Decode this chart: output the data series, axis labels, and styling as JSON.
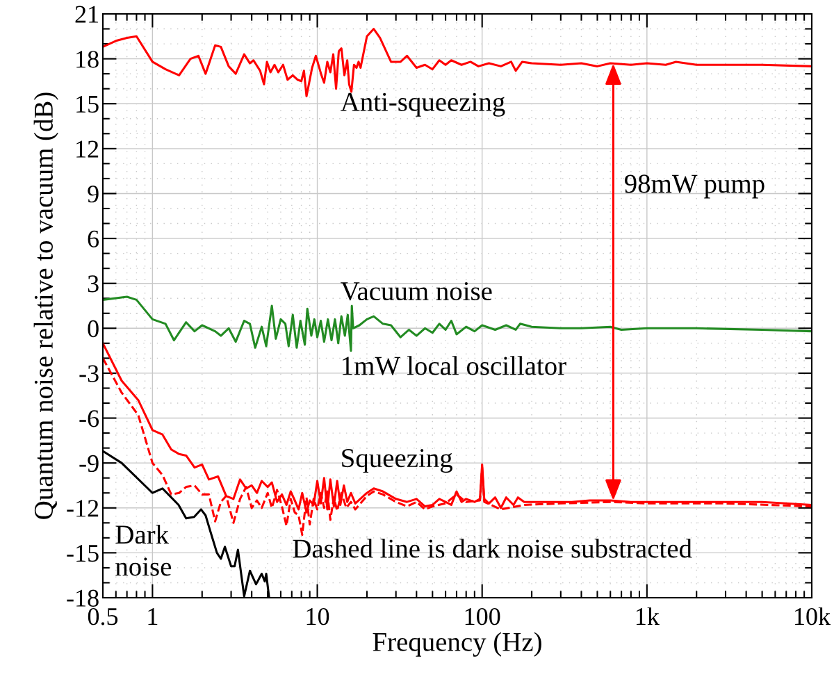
{
  "chart_data": {
    "type": "line",
    "xlabel": "Frequency (Hz)",
    "ylabel": "Quantum noise relative to vacuum (dB)",
    "log": "x",
    "grid": true,
    "legend": false,
    "xlim": [
      0.5,
      10000
    ],
    "xticks": [
      {
        "value": 0.5,
        "label": "0.5"
      },
      1,
      10,
      100,
      {
        "value": 1000,
        "label": "1k"
      },
      {
        "value": 10000,
        "label": "10k"
      }
    ],
    "ylim": [
      -18,
      21
    ],
    "yticks": [
      -18,
      -15,
      -12,
      -9,
      -6,
      -3,
      0,
      3,
      6,
      9,
      12,
      15,
      18,
      21
    ],
    "series": [
      {
        "color": "#ff0000",
        "line_style": "solid",
        "x": [
          0.5,
          0.6,
          0.7,
          0.8,
          1.0,
          1.2,
          1.45,
          1.7,
          1.9,
          2.1,
          2.4,
          2.6,
          2.9,
          3.2,
          3.6,
          3.9,
          4.1,
          4.5,
          4.75,
          4.95,
          5.2,
          5.5,
          5.8,
          6.2,
          6.6,
          7.1,
          7.6,
          8.0,
          8.3,
          8.6,
          9.3,
          9.8,
          10.6,
          11,
          11.5,
          12,
          12.5,
          13,
          13.5,
          14,
          14.6,
          15.2,
          15.6,
          16.1,
          16.7,
          17.3,
          17.8,
          18.3,
          20,
          22,
          24,
          28,
          32,
          35,
          40,
          45,
          50,
          55,
          60,
          65,
          75,
          85,
          95,
          110,
          130,
          150,
          160,
          175,
          200,
          300,
          400,
          500,
          600,
          800,
          1000,
          1300,
          1500,
          2000,
          5000,
          10000
        ],
        "values": [
          18.8,
          19.2,
          19.4,
          19.5,
          17.8,
          17.3,
          16.9,
          18.0,
          18.2,
          17.0,
          18.9,
          18.8,
          17.5,
          17.0,
          18.3,
          17.7,
          17.9,
          17.2,
          16.3,
          17.8,
          17.1,
          17.6,
          17.1,
          17.6,
          16.6,
          16.9,
          16.6,
          16.5,
          17.2,
          15.5,
          17.4,
          18.2,
          16.9,
          16.4,
          17.8,
          17.1,
          18.3,
          16.0,
          18.5,
          18.7,
          16.9,
          17.9,
          16.3,
          15.8,
          17.6,
          17.4,
          17.8,
          17.4,
          19.5,
          20.0,
          19.4,
          17.8,
          17.8,
          18.2,
          17.4,
          17.6,
          17.3,
          17.9,
          17.6,
          17.9,
          17.6,
          17.8,
          17.5,
          17.7,
          17.5,
          17.8,
          17.2,
          17.8,
          17.7,
          17.6,
          17.7,
          17.5,
          17.7,
          17.6,
          17.7,
          17.6,
          17.8,
          17.6,
          17.6,
          17.5
        ]
      },
      {
        "color": "#228b22",
        "line_style": "solid",
        "x": [
          0.5,
          0.7,
          0.8,
          1.0,
          1.2,
          1.35,
          1.6,
          1.8,
          2.0,
          2.4,
          2.6,
          2.9,
          3.2,
          3.6,
          3.9,
          4.2,
          4.6,
          4.9,
          5.3,
          5.6,
          6.0,
          6.4,
          6.7,
          7.1,
          7.5,
          7.9,
          8.4,
          8.7,
          9.2,
          9.6,
          10,
          10.5,
          11,
          11.6,
          12.2,
          12.8,
          13.4,
          14,
          14.7,
          15.3,
          16,
          16.2,
          16.5,
          18,
          20,
          22,
          25,
          28,
          32,
          36,
          40,
          45,
          50,
          55,
          60,
          65,
          70,
          80,
          90,
          100,
          120,
          140,
          160,
          170,
          200,
          300,
          400,
          600,
          700,
          1000,
          1500,
          2000,
          5000,
          10000
        ],
        "values": [
          1.9,
          2.1,
          1.9,
          0.6,
          0.3,
          -0.8,
          0.4,
          -0.2,
          0.2,
          -0.2,
          -0.5,
          0.0,
          -0.9,
          0.5,
          0.3,
          -1.3,
          0.1,
          -1.2,
          1.5,
          -0.7,
          0.6,
          0.3,
          -1.2,
          0.9,
          -1.3,
          0.5,
          -1.1,
          1.3,
          -0.5,
          0.6,
          -0.6,
          0.5,
          -0.9,
          0.6,
          -0.8,
          0.6,
          -1.0,
          0.8,
          -0.5,
          0.9,
          -1.5,
          1.5,
          0.0,
          0.2,
          0.6,
          0.8,
          0.3,
          0.2,
          -0.6,
          -0.1,
          -0.5,
          0.0,
          -0.3,
          0.3,
          -0.1,
          0.5,
          -0.4,
          0.1,
          -0.2,
          0.2,
          -0.1,
          0.2,
          -0.1,
          0.3,
          0.1,
          0.0,
          0.0,
          0.1,
          -0.1,
          0.0,
          0.0,
          0.0,
          -0.1,
          -0.2
        ]
      },
      {
        "color": "#ff0000",
        "line_style": "solid",
        "x": [
          0.5,
          0.65,
          0.82,
          1.0,
          1.15,
          1.3,
          1.45,
          1.6,
          1.8,
          2.0,
          2.2,
          2.5,
          2.8,
          3.1,
          3.4,
          3.7,
          4.0,
          4.3,
          4.6,
          5.0,
          5.3,
          5.7,
          6.1,
          6.5,
          6.9,
          7.3,
          7.7,
          8.1,
          8.6,
          9.0,
          9.5,
          10,
          10.5,
          11,
          11.5,
          12,
          12.6,
          13.2,
          13.8,
          14.5,
          15.2,
          16,
          17,
          20,
          22,
          25,
          30,
          35,
          40,
          45,
          50,
          55,
          60,
          65,
          70,
          75,
          80,
          90,
          97,
          100,
          103,
          110,
          120,
          130,
          140,
          155,
          165,
          180,
          250,
          350,
          450,
          600,
          800,
          1000,
          2000,
          5000,
          10000
        ],
        "values": [
          -1.0,
          -3.5,
          -4.8,
          -6.8,
          -7.1,
          -8.1,
          -8.4,
          -8.5,
          -9.3,
          -9.1,
          -10.1,
          -9.9,
          -11.2,
          -11.4,
          -10.1,
          -10.7,
          -10.5,
          -11.0,
          -10.2,
          -10.6,
          -10.3,
          -11.6,
          -11.1,
          -11.8,
          -10.9,
          -11.5,
          -12.1,
          -11.0,
          -12.3,
          -11.5,
          -11.8,
          -10.2,
          -11.7,
          -10.0,
          -12.1,
          -10.1,
          -11.9,
          -10.2,
          -11.8,
          -10.5,
          -11.6,
          -11.0,
          -11.7,
          -11.0,
          -10.7,
          -10.9,
          -11.4,
          -11.6,
          -11.4,
          -11.9,
          -11.8,
          -11.4,
          -11.6,
          -11.8,
          -10.9,
          -11.6,
          -11.4,
          -11.6,
          -11.4,
          -9.1,
          -11.4,
          -11.7,
          -11.3,
          -12.0,
          -11.3,
          -11.8,
          -11.3,
          -11.6,
          -11.6,
          -11.6,
          -11.5,
          -11.5,
          -11.6,
          -11.6,
          -11.6,
          -11.6,
          -11.8
        ]
      },
      {
        "color": "#ff0000",
        "line_style": "dashed",
        "x": [
          0.5,
          0.65,
          0.82,
          1.0,
          1.15,
          1.3,
          1.45,
          1.6,
          1.8,
          2.0,
          2.2,
          2.4,
          2.6,
          2.8,
          3.1,
          3.4,
          3.7,
          4.0,
          4.3,
          4.6,
          5.0,
          5.3,
          5.7,
          6.1,
          6.5,
          6.9,
          7.3,
          7.7,
          8.1,
          8.6,
          9.0,
          9.5,
          10,
          10.5,
          11,
          11.5,
          12,
          12.6,
          13.2,
          14,
          15,
          16,
          17,
          20,
          22,
          25,
          30,
          35,
          40,
          45,
          50,
          60,
          70,
          80,
          97,
          100,
          103,
          130,
          180,
          300,
          600,
          1000,
          3000,
          10000
        ],
        "values": [
          -2.0,
          -4.3,
          -5.8,
          -9.0,
          -9.8,
          -11.1,
          -11.0,
          -10.6,
          -10.5,
          -11.1,
          -11.1,
          -12.9,
          -11.6,
          -11.2,
          -13.0,
          -11.4,
          -10.6,
          -12.0,
          -11.5,
          -12.0,
          -11.0,
          -12.0,
          -10.8,
          -11.9,
          -13.2,
          -11.4,
          -12.3,
          -12.5,
          -13.8,
          -11.3,
          -13.1,
          -11.4,
          -12.1,
          -11.0,
          -12.0,
          -10.9,
          -12.8,
          -11.3,
          -12.2,
          -11.0,
          -12.0,
          -11.6,
          -12.1,
          -11.2,
          -10.9,
          -11.1,
          -11.6,
          -11.9,
          -11.6,
          -12.1,
          -11.9,
          -11.7,
          -11.1,
          -11.6,
          -11.5,
          -9.3,
          -11.6,
          -12.1,
          -11.8,
          -11.7,
          -11.6,
          -11.7,
          -11.7,
          -11.9
        ]
      },
      {
        "color": "#000000",
        "line_style": "solid",
        "x": [
          0.5,
          0.65,
          1.0,
          1.15,
          1.44,
          1.6,
          1.79,
          1.97,
          2.1,
          2.25,
          2.46,
          2.6,
          2.75,
          3.0,
          3.15,
          3.3,
          3.6,
          3.9,
          4.25,
          4.6,
          4.8,
          4.9,
          5.1
        ],
        "values": [
          -8.2,
          -9.0,
          -11.0,
          -10.7,
          -11.8,
          -12.7,
          -12.6,
          -12.1,
          -12.5,
          -13.6,
          -15.0,
          -15.4,
          -14.6,
          -15.9,
          -15.9,
          -14.8,
          -17.9,
          -16.2,
          -17.1,
          -16.4,
          -16.9,
          -16.4,
          -18.0
        ]
      }
    ],
    "annotations": [
      "Anti-squeezing",
      "Vacuum noise",
      "1mW local oscillator",
      "Squeezing",
      "Dark\nnoise",
      "Dashed line is dark noise substracted",
      "98mW pump"
    ]
  }
}
